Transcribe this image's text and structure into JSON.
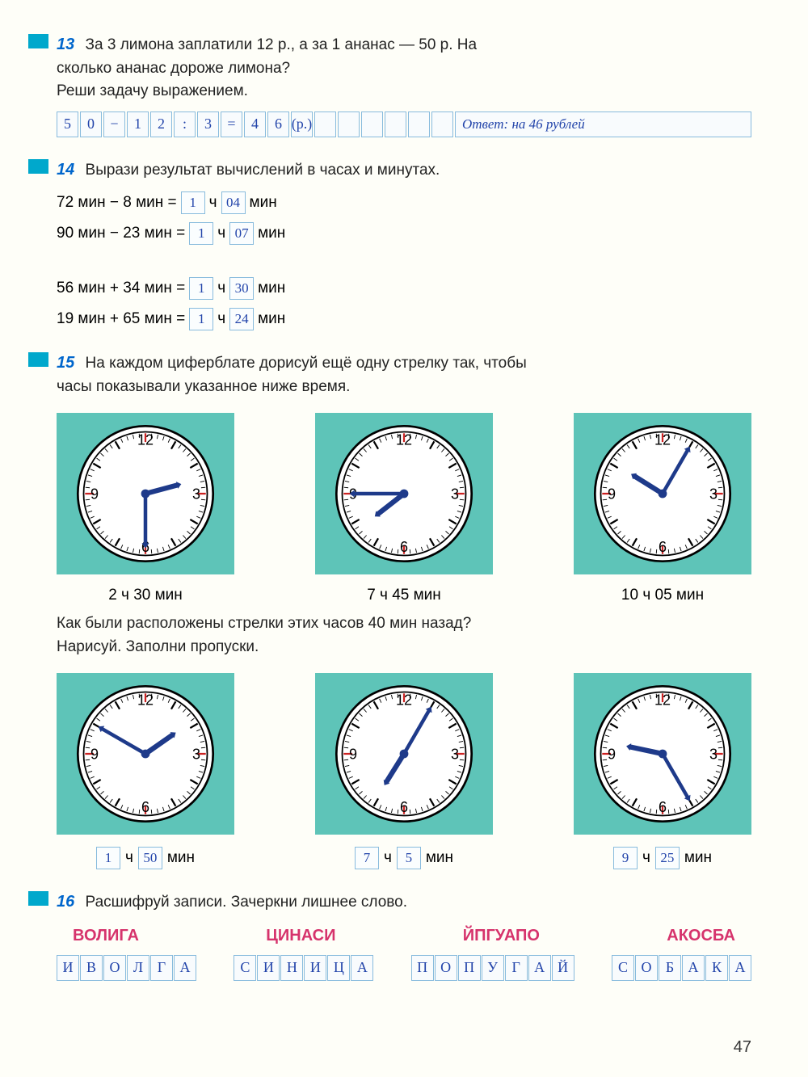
{
  "page_number": "47",
  "task13": {
    "num": "13",
    "text_line1": "За 3 лимона заплатили 12 р., а за 1 ананас — 50 р. На",
    "text_line2": "сколько ананас дороже лимона?",
    "text_line3": "Реши задачу выражением.",
    "answer_expr": [
      "5",
      "0",
      "−",
      "1",
      "2",
      ":",
      "3",
      "=",
      "4",
      "6",
      "(р.)",
      "",
      "",
      "",
      "",
      "",
      "",
      "",
      ""
    ],
    "answer_label": "Ответ: на 46 рублей"
  },
  "task14": {
    "num": "14",
    "text": "Вырази результат вычислений в часах и минутах.",
    "eq1_lhs": "72 мин − 8 мин =",
    "eq1_h": "1",
    "eq1_m": "04",
    "eq2_lhs": "90 мин − 23 мин =",
    "eq2_h": "1",
    "eq2_m": "07",
    "eq3_lhs": "56 мин + 34 мин =",
    "eq3_h": "1",
    "eq3_m": "30",
    "eq4_lhs": "19 мин + 65 мин =",
    "eq4_h": "1",
    "eq4_m": "24",
    "unit_h": "ч",
    "unit_m": "мин"
  },
  "task15": {
    "num": "15",
    "text_line1": "На каждом циферблате дорисуй ещё одну стрелку так, чтобы",
    "text_line2": "часы показывали указанное ниже время.",
    "clocks_top": [
      {
        "label": "2 ч 30 мин",
        "hour_angle": 75,
        "minute_angle": 180
      },
      {
        "label": "7 ч 45 мин",
        "hour_angle": 232,
        "minute_angle": 270
      },
      {
        "label": "10 ч 05 мин",
        "hour_angle": 302,
        "minute_angle": 30
      }
    ],
    "text_line3": "Как были расположены стрелки этих часов 40 мин назад?",
    "text_line4": "Нарисуй. Заполни пропуски.",
    "clocks_bot": [
      {
        "h": "1",
        "m": "50",
        "hour_angle": 55,
        "minute_angle": 300
      },
      {
        "h": "7",
        "m": "5",
        "hour_angle": 212,
        "minute_angle": 30
      },
      {
        "h": "9",
        "m": "25",
        "hour_angle": 282,
        "minute_angle": 150
      }
    ],
    "fill_h": "ч",
    "fill_m": "мин"
  },
  "task16": {
    "num": "16",
    "text": "Расшифруй записи. Зачеркни лишнее слово.",
    "anagrams": [
      "ВОЛИГА",
      "ЦИНАСИ",
      "ЙПГУАПО",
      "АКОСБА"
    ],
    "decoded": [
      [
        "И",
        "В",
        "О",
        "Л",
        "Г",
        "А"
      ],
      [
        "С",
        "И",
        "Н",
        "И",
        "Ц",
        "А"
      ],
      [
        "П",
        "О",
        "П",
        "У",
        "Г",
        "А",
        "Й"
      ],
      [
        "С",
        "О",
        "Б",
        "А",
        "К",
        "А"
      ]
    ]
  },
  "clock_style": {
    "bg_color": "#5ec4b8",
    "face_color": "#ffffff",
    "border_color": "#000000",
    "num_color": "#000000",
    "hand_color": "#1e3a8a",
    "red_tick": "#cc2222"
  }
}
